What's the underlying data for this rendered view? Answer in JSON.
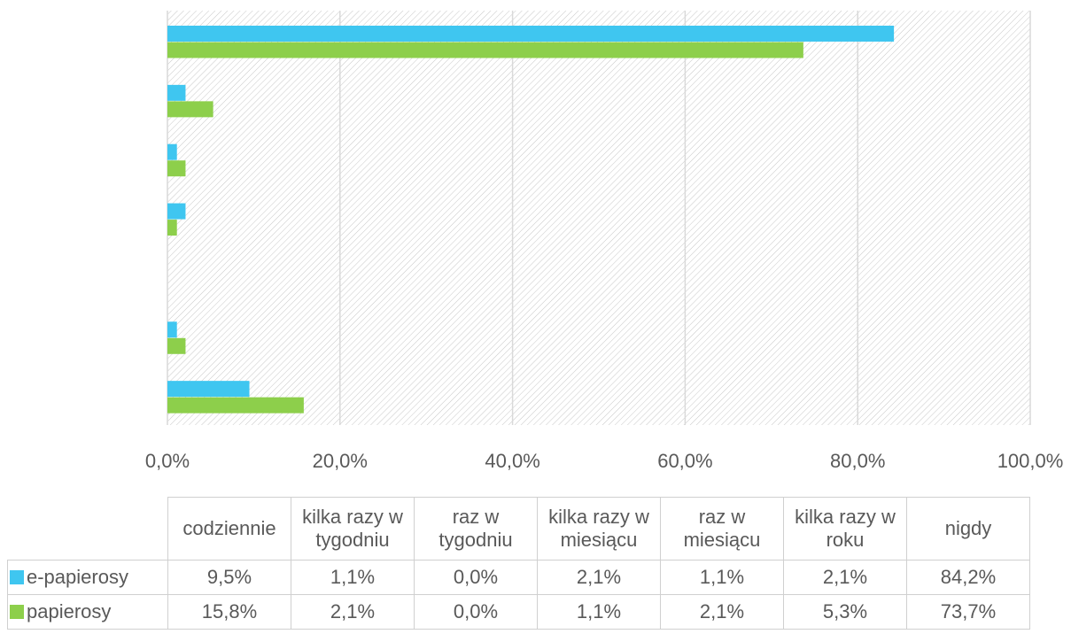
{
  "chart_data": {
    "type": "bar",
    "orientation": "horizontal",
    "categories": [
      "codziennie",
      "kilka razy w tygodniu",
      "raz w tygodniu",
      "kilka razy w miesiącu",
      "raz w miesiącu",
      "kilka razy w roku",
      "nigdy"
    ],
    "series": [
      {
        "name": "e-papierosy",
        "color": "#3fc6f0",
        "values": [
          9.5,
          1.1,
          0.0,
          2.1,
          1.1,
          2.1,
          84.2
        ],
        "value_labels": [
          "9,5%",
          "1,1%",
          "0,0%",
          "2,1%",
          "1,1%",
          "2,1%",
          "84,2%"
        ]
      },
      {
        "name": "papierosy",
        "color": "#8dcf4b",
        "values": [
          15.8,
          2.1,
          0.0,
          1.1,
          2.1,
          5.3,
          73.7
        ],
        "value_labels": [
          "15,8%",
          "2,1%",
          "0,0%",
          "1,1%",
          "2,1%",
          "5,3%",
          "73,7%"
        ]
      }
    ],
    "xlim": [
      0,
      100
    ],
    "xticks": [
      {
        "value": 0,
        "label": "0,0%"
      },
      {
        "value": 20,
        "label": "20,0%"
      },
      {
        "value": 40,
        "label": "40,0%"
      },
      {
        "value": 60,
        "label": "60,0%"
      },
      {
        "value": 80,
        "label": "80,0%"
      },
      {
        "value": 100,
        "label": "100,0%"
      }
    ],
    "grid": true,
    "legend": "table"
  }
}
